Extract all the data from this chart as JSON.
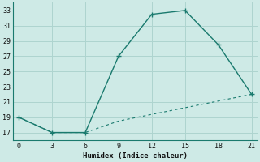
{
  "line1_x": [
    0,
    3,
    6,
    9,
    12,
    15,
    18,
    21
  ],
  "line1_y": [
    19,
    17,
    17,
    27,
    32.5,
    33,
    28.5,
    22
  ],
  "line2_x": [
    0,
    3,
    6,
    9,
    21
  ],
  "line2_y": [
    19,
    17,
    17,
    18.5,
    22
  ],
  "line_color": "#1a7a6e",
  "bg_color": "#ceeae6",
  "grid_color": "#aed4cf",
  "xlabel": "Humidex (Indice chaleur)",
  "xlim": [
    -0.5,
    21.5
  ],
  "ylim": [
    16,
    34
  ],
  "xticks": [
    0,
    3,
    6,
    9,
    12,
    15,
    18,
    21
  ],
  "yticks": [
    17,
    19,
    21,
    23,
    25,
    27,
    29,
    31,
    33
  ]
}
